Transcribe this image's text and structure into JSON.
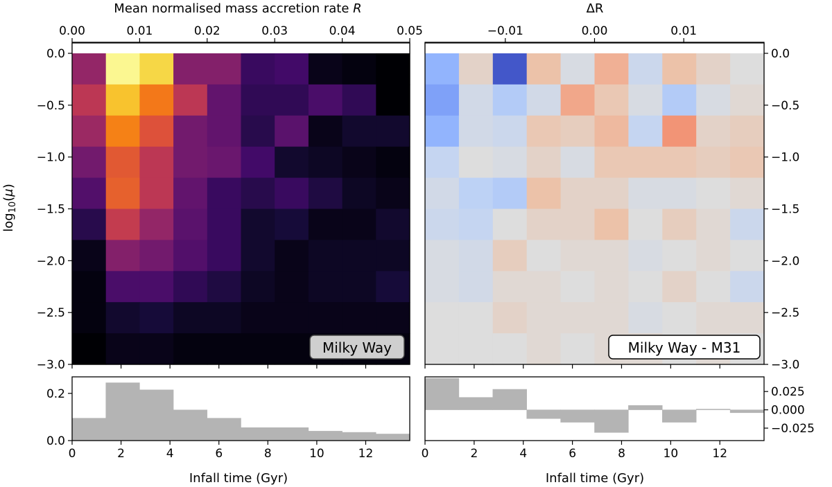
{
  "figure": {
    "colorbar_left_label": "Mean normalised mass accretion rate R",
    "colorbar_right_label": "ΔR",
    "panel_left_label": "Milky Way",
    "panel_right_label": "Milky Way - M31",
    "y_axis_label": "log10(μ)",
    "x_axis_label": "Infall time (Gyr)"
  },
  "chart_data": [
    {
      "type": "heatmap",
      "name": "Milky Way",
      "x_edges": [
        0,
        1.38,
        2.76,
        4.14,
        5.52,
        6.9,
        8.28,
        9.66,
        11.04,
        12.42,
        13.8
      ],
      "y_edges": [
        0.0,
        -0.3,
        -0.6,
        -0.9,
        -1.2,
        -1.5,
        -1.8,
        -2.1,
        -2.4,
        -2.7,
        -3.0
      ],
      "xlim": [
        0,
        13.8
      ],
      "ylim": [
        -3.0,
        0.1
      ],
      "xticks": [
        0,
        2,
        4,
        6,
        8,
        10,
        12
      ],
      "yticks": [
        0.0,
        -0.5,
        -1.0,
        -1.5,
        -2.0,
        -2.5,
        -3.0
      ],
      "colormap": "inferno",
      "color_range": [
        0.0,
        0.05
      ],
      "colorbar_ticks": [
        0.0,
        0.01,
        0.02,
        0.03,
        0.04,
        0.05
      ],
      "colorbar_label": "Mean normalised mass accretion rate R",
      "values": [
        [
          0.02,
          0.049,
          0.045,
          0.018,
          0.018,
          0.009,
          0.01,
          0.002,
          0.001,
          0.0
        ],
        [
          0.025,
          0.043,
          0.035,
          0.025,
          0.014,
          0.008,
          0.008,
          0.011,
          0.008,
          0.0
        ],
        [
          0.021,
          0.036,
          0.03,
          0.016,
          0.014,
          0.007,
          0.013,
          0.002,
          0.004,
          0.004
        ],
        [
          0.016,
          0.031,
          0.025,
          0.016,
          0.015,
          0.01,
          0.004,
          0.003,
          0.002,
          0.001
        ],
        [
          0.012,
          0.032,
          0.025,
          0.014,
          0.009,
          0.007,
          0.009,
          0.006,
          0.003,
          0.002
        ],
        [
          0.007,
          0.026,
          0.02,
          0.013,
          0.009,
          0.004,
          0.005,
          0.002,
          0.002,
          0.004
        ],
        [
          0.002,
          0.018,
          0.016,
          0.012,
          0.009,
          0.004,
          0.002,
          0.003,
          0.003,
          0.003
        ],
        [
          0.001,
          0.011,
          0.011,
          0.008,
          0.006,
          0.003,
          0.002,
          0.003,
          0.003,
          0.005
        ],
        [
          0.001,
          0.004,
          0.005,
          0.003,
          0.003,
          0.002,
          0.002,
          0.002,
          0.002,
          0.002
        ],
        [
          0.0,
          0.002,
          0.002,
          0.001,
          0.001,
          0.001,
          0.001,
          0.001,
          0.001,
          0.001
        ]
      ],
      "marginal": {
        "type": "bar",
        "values": [
          0.095,
          0.245,
          0.215,
          0.13,
          0.095,
          0.055,
          0.055,
          0.04,
          0.035,
          0.028
        ],
        "ylim": [
          0,
          0.27
        ],
        "yticks": [
          0.0,
          0.2
        ]
      }
    },
    {
      "type": "heatmap",
      "name": "Milky Way - M31",
      "x_edges": [
        0,
        1.38,
        2.76,
        4.14,
        5.52,
        6.9,
        8.28,
        9.66,
        11.04,
        12.42,
        13.8
      ],
      "y_edges": [
        0.0,
        -0.3,
        -0.6,
        -0.9,
        -1.2,
        -1.5,
        -1.8,
        -2.1,
        -2.4,
        -2.7,
        -3.0
      ],
      "xlim": [
        0,
        13.8
      ],
      "ylim": [
        -3.0,
        0.1
      ],
      "xticks": [
        0,
        2,
        4,
        6,
        8,
        10,
        12
      ],
      "yticks": [
        0.0,
        -0.5,
        -1.0,
        -1.5,
        -2.0,
        -2.5,
        -3.0
      ],
      "colormap": "coolwarm_r",
      "color_range": [
        -0.019,
        0.019
      ],
      "colorbar_ticks": [
        -0.01,
        0.0,
        0.01
      ],
      "colorbar_label": "ΔR",
      "values": [
        [
          0.009,
          -0.002,
          0.018,
          -0.005,
          0.001,
          -0.007,
          0.003,
          -0.005,
          -0.002,
          0.0
        ],
        [
          0.011,
          0.002,
          0.006,
          0.002,
          -0.008,
          -0.004,
          0.001,
          0.006,
          0.001,
          -0.001
        ],
        [
          0.009,
          0.002,
          0.003,
          -0.004,
          -0.003,
          -0.006,
          0.004,
          -0.01,
          -0.002,
          -0.003
        ],
        [
          0.004,
          0.0,
          0.001,
          -0.002,
          0.001,
          -0.004,
          -0.004,
          -0.004,
          -0.003,
          -0.004
        ],
        [
          0.002,
          0.005,
          0.006,
          -0.005,
          -0.002,
          -0.002,
          0.001,
          0.001,
          0.0,
          -0.001
        ],
        [
          0.003,
          0.004,
          0.0,
          -0.002,
          -0.002,
          -0.005,
          0.0,
          -0.003,
          -0.001,
          0.003
        ],
        [
          0.001,
          0.002,
          -0.003,
          0.0,
          -0.001,
          -0.001,
          0.001,
          0.0,
          -0.001,
          0.0
        ],
        [
          0.001,
          0.002,
          -0.001,
          -0.001,
          0.0,
          -0.001,
          0.0,
          -0.002,
          0.0,
          0.003
        ],
        [
          0.0,
          0.0,
          -0.002,
          -0.001,
          -0.001,
          -0.001,
          0.001,
          0.0,
          -0.001,
          -0.001
        ],
        [
          0.0,
          0.0,
          0.0,
          -0.001,
          0.0,
          -0.001,
          -0.001,
          0.0,
          -0.001,
          0.0
        ]
      ],
      "marginal": {
        "type": "bar",
        "values": [
          0.043,
          0.017,
          0.028,
          -0.012,
          -0.017,
          -0.031,
          0.006,
          -0.017,
          0.001,
          -0.004
        ],
        "ylim": [
          -0.042,
          0.045
        ],
        "yticks": [
          0.025,
          0.0,
          -0.025
        ]
      }
    }
  ]
}
